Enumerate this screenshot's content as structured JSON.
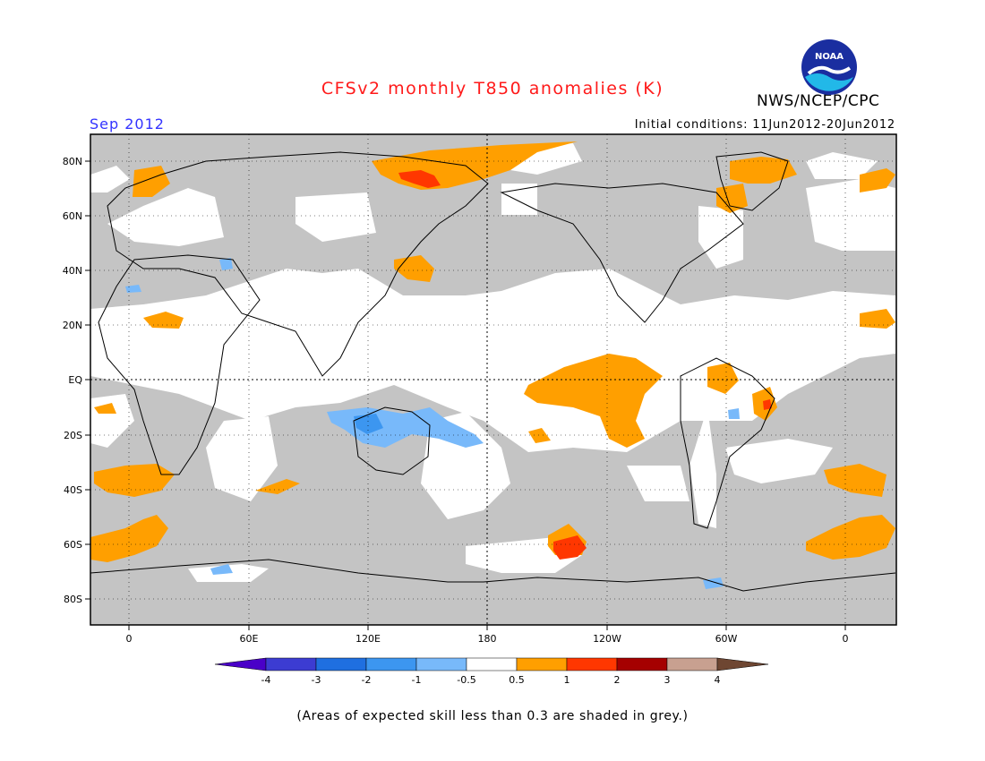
{
  "header": {
    "title": "CFSv2 monthly T850 anomalies (K)",
    "org": "NWS/NCEP/CPC",
    "logo_text": "NOAA",
    "month": "Sep 2012",
    "initial_conditions": "Initial conditions: 11Jun2012-20Jun2012"
  },
  "map": {
    "lat_labels": [
      "80N",
      "60N",
      "40N",
      "20N",
      "EQ",
      "20S",
      "40S",
      "60S",
      "80S"
    ],
    "lon_labels": [
      "0",
      "60E",
      "120E",
      "180",
      "120W",
      "60W",
      "0"
    ]
  },
  "legend": {
    "tick_labels": [
      "-4",
      "-3",
      "-2",
      "-1",
      "-0.5",
      "0.5",
      "1",
      "2",
      "3",
      "4"
    ],
    "colors": [
      "#4a00c8",
      "#3c3cd2",
      "#1f6fe0",
      "#3c96f0",
      "#78b9fa",
      "#ffffff",
      "#ff9f00",
      "#ff3700",
      "#a50000",
      "#c8a090",
      "#6e4632"
    ]
  },
  "footnote": "(Areas of expected skill less than 0.3 are shaded in grey.)",
  "colors": {
    "grey_mask": "#c4c4c4",
    "title": "#ff1a1a",
    "month": "#3333ff"
  }
}
